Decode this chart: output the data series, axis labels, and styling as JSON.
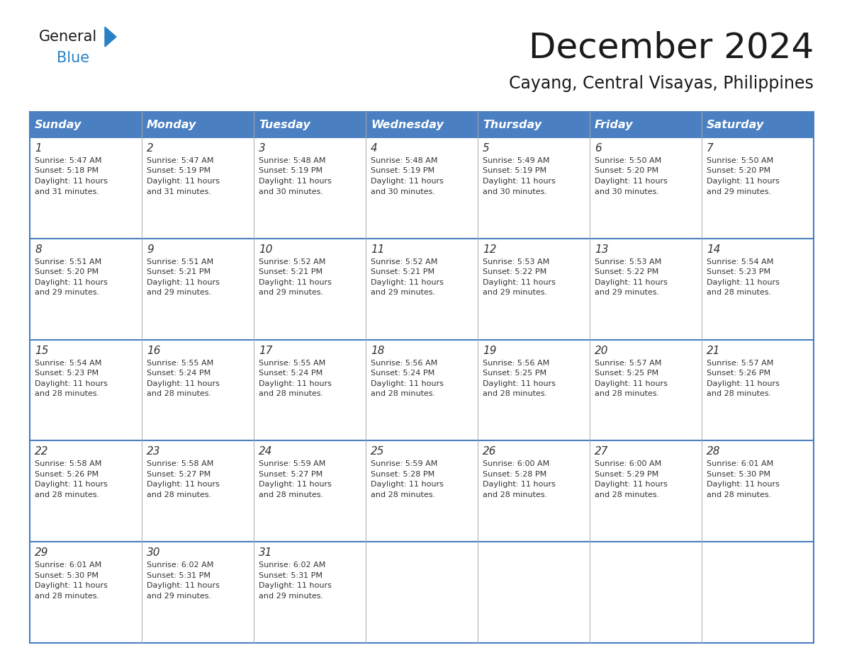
{
  "title": "December 2024",
  "subtitle": "Cayang, Central Visayas, Philippines",
  "days_of_week": [
    "Sunday",
    "Monday",
    "Tuesday",
    "Wednesday",
    "Thursday",
    "Friday",
    "Saturday"
  ],
  "header_bg_color": "#4a7fc1",
  "header_text_color": "#FFFFFF",
  "cell_bg_color": "#FFFFFF",
  "border_color": "#4a7fc1",
  "day_num_color": "#333333",
  "cell_text_color": "#333333",
  "title_color": "#1a1a1a",
  "subtitle_color": "#1a1a1a",
  "logo_black": "#1a1a1a",
  "logo_blue": "#2980c4",
  "calendar_data": [
    [
      {
        "day": "1",
        "sunrise": "5:47 AM",
        "sunset": "5:18 PM",
        "daylight_hrs": 11,
        "daylight_min": 31
      },
      {
        "day": "2",
        "sunrise": "5:47 AM",
        "sunset": "5:19 PM",
        "daylight_hrs": 11,
        "daylight_min": 31
      },
      {
        "day": "3",
        "sunrise": "5:48 AM",
        "sunset": "5:19 PM",
        "daylight_hrs": 11,
        "daylight_min": 30
      },
      {
        "day": "4",
        "sunrise": "5:48 AM",
        "sunset": "5:19 PM",
        "daylight_hrs": 11,
        "daylight_min": 30
      },
      {
        "day": "5",
        "sunrise": "5:49 AM",
        "sunset": "5:19 PM",
        "daylight_hrs": 11,
        "daylight_min": 30
      },
      {
        "day": "6",
        "sunrise": "5:50 AM",
        "sunset": "5:20 PM",
        "daylight_hrs": 11,
        "daylight_min": 30
      },
      {
        "day": "7",
        "sunrise": "5:50 AM",
        "sunset": "5:20 PM",
        "daylight_hrs": 11,
        "daylight_min": 29
      }
    ],
    [
      {
        "day": "8",
        "sunrise": "5:51 AM",
        "sunset": "5:20 PM",
        "daylight_hrs": 11,
        "daylight_min": 29
      },
      {
        "day": "9",
        "sunrise": "5:51 AM",
        "sunset": "5:21 PM",
        "daylight_hrs": 11,
        "daylight_min": 29
      },
      {
        "day": "10",
        "sunrise": "5:52 AM",
        "sunset": "5:21 PM",
        "daylight_hrs": 11,
        "daylight_min": 29
      },
      {
        "day": "11",
        "sunrise": "5:52 AM",
        "sunset": "5:21 PM",
        "daylight_hrs": 11,
        "daylight_min": 29
      },
      {
        "day": "12",
        "sunrise": "5:53 AM",
        "sunset": "5:22 PM",
        "daylight_hrs": 11,
        "daylight_min": 29
      },
      {
        "day": "13",
        "sunrise": "5:53 AM",
        "sunset": "5:22 PM",
        "daylight_hrs": 11,
        "daylight_min": 29
      },
      {
        "day": "14",
        "sunrise": "5:54 AM",
        "sunset": "5:23 PM",
        "daylight_hrs": 11,
        "daylight_min": 28
      }
    ],
    [
      {
        "day": "15",
        "sunrise": "5:54 AM",
        "sunset": "5:23 PM",
        "daylight_hrs": 11,
        "daylight_min": 28
      },
      {
        "day": "16",
        "sunrise": "5:55 AM",
        "sunset": "5:24 PM",
        "daylight_hrs": 11,
        "daylight_min": 28
      },
      {
        "day": "17",
        "sunrise": "5:55 AM",
        "sunset": "5:24 PM",
        "daylight_hrs": 11,
        "daylight_min": 28
      },
      {
        "day": "18",
        "sunrise": "5:56 AM",
        "sunset": "5:24 PM",
        "daylight_hrs": 11,
        "daylight_min": 28
      },
      {
        "day": "19",
        "sunrise": "5:56 AM",
        "sunset": "5:25 PM",
        "daylight_hrs": 11,
        "daylight_min": 28
      },
      {
        "day": "20",
        "sunrise": "5:57 AM",
        "sunset": "5:25 PM",
        "daylight_hrs": 11,
        "daylight_min": 28
      },
      {
        "day": "21",
        "sunrise": "5:57 AM",
        "sunset": "5:26 PM",
        "daylight_hrs": 11,
        "daylight_min": 28
      }
    ],
    [
      {
        "day": "22",
        "sunrise": "5:58 AM",
        "sunset": "5:26 PM",
        "daylight_hrs": 11,
        "daylight_min": 28
      },
      {
        "day": "23",
        "sunrise": "5:58 AM",
        "sunset": "5:27 PM",
        "daylight_hrs": 11,
        "daylight_min": 28
      },
      {
        "day": "24",
        "sunrise": "5:59 AM",
        "sunset": "5:27 PM",
        "daylight_hrs": 11,
        "daylight_min": 28
      },
      {
        "day": "25",
        "sunrise": "5:59 AM",
        "sunset": "5:28 PM",
        "daylight_hrs": 11,
        "daylight_min": 28
      },
      {
        "day": "26",
        "sunrise": "6:00 AM",
        "sunset": "5:28 PM",
        "daylight_hrs": 11,
        "daylight_min": 28
      },
      {
        "day": "27",
        "sunrise": "6:00 AM",
        "sunset": "5:29 PM",
        "daylight_hrs": 11,
        "daylight_min": 28
      },
      {
        "day": "28",
        "sunrise": "6:01 AM",
        "sunset": "5:30 PM",
        "daylight_hrs": 11,
        "daylight_min": 28
      }
    ],
    [
      {
        "day": "29",
        "sunrise": "6:01 AM",
        "sunset": "5:30 PM",
        "daylight_hrs": 11,
        "daylight_min": 28
      },
      {
        "day": "30",
        "sunrise": "6:02 AM",
        "sunset": "5:31 PM",
        "daylight_hrs": 11,
        "daylight_min": 29
      },
      {
        "day": "31",
        "sunrise": "6:02 AM",
        "sunset": "5:31 PM",
        "daylight_hrs": 11,
        "daylight_min": 29
      },
      null,
      null,
      null,
      null
    ]
  ]
}
